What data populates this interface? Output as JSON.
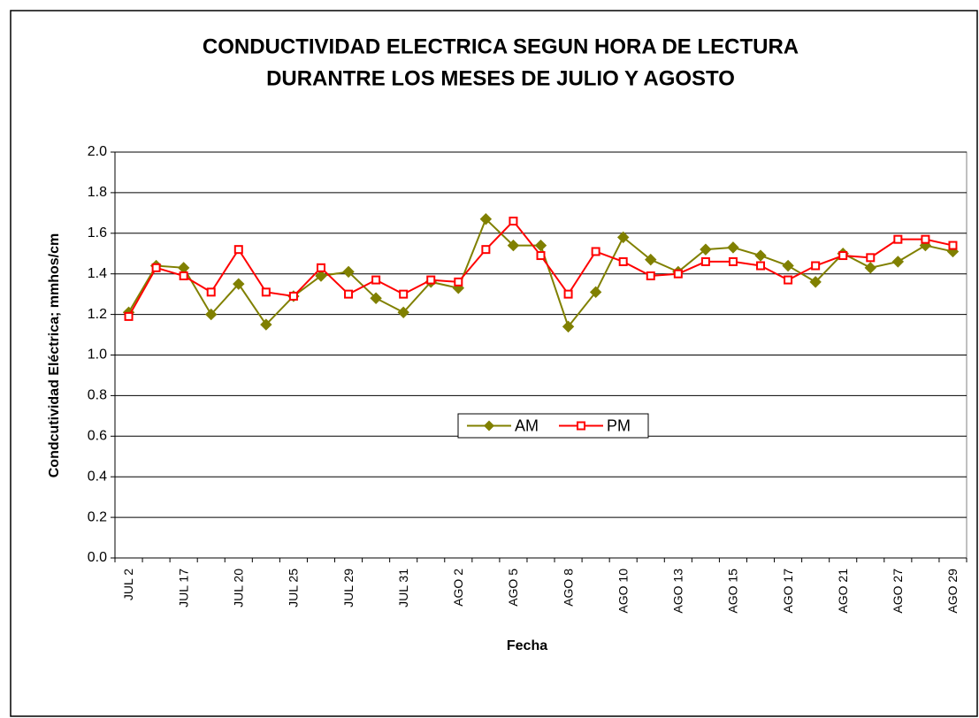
{
  "chart_data": {
    "type": "line",
    "title": [
      "CONDUCTIVIDAD ELECTRICA SEGUN HORA DE LECTURA",
      "DURANTRE LOS MESES DE JULIO Y AGOSTO"
    ],
    "x_label": "Fecha",
    "y_label": "Condcutividad Eléctrica; mmhos/cm",
    "categories": [
      "JUL 2",
      null,
      "JUL 17",
      null,
      "JUL 20",
      null,
      "JUL 25",
      null,
      "JUL 29",
      null,
      "JUL 31",
      null,
      "AGO 2",
      null,
      "AGO 5",
      null,
      "AGO 8",
      null,
      "AGO 10",
      null,
      "AGO 13",
      null,
      "AGO 15",
      null,
      "AGO 17",
      null,
      "AGO 21",
      null,
      "AGO 27",
      null,
      "AGO 29"
    ],
    "series": [
      {
        "name": "AM",
        "color": "#808000",
        "marker": "diamond",
        "values": [
          1.21,
          1.44,
          1.43,
          1.2,
          1.35,
          1.15,
          1.29,
          1.39,
          1.41,
          1.28,
          1.21,
          1.36,
          1.33,
          1.67,
          1.54,
          1.54,
          1.14,
          1.31,
          1.58,
          1.47,
          1.41,
          1.52,
          1.53,
          1.49,
          1.44,
          1.36,
          1.5,
          1.43,
          1.46,
          1.54,
          1.51
        ]
      },
      {
        "name": "PM",
        "color": "#ff0000",
        "marker": "square",
        "values": [
          1.19,
          1.43,
          1.39,
          1.31,
          1.52,
          1.31,
          1.29,
          1.43,
          1.3,
          1.37,
          1.3,
          1.37,
          1.36,
          1.52,
          1.66,
          1.49,
          1.3,
          1.51,
          1.46,
          1.39,
          1.4,
          1.46,
          1.46,
          1.44,
          1.37,
          1.44,
          1.49,
          1.48,
          1.57,
          1.57,
          1.54
        ]
      }
    ],
    "ylim": [
      0,
      2
    ],
    "yticks": [
      {
        "value": 0,
        "label": "0.0"
      },
      0.2,
      0.4,
      0.6,
      0.8,
      {
        "value": 1,
        "label": "1.0"
      },
      1.2,
      1.4,
      1.6,
      1.8,
      {
        "value": 2,
        "label": "2.0"
      }
    ],
    "grid": true,
    "legend": "center"
  }
}
